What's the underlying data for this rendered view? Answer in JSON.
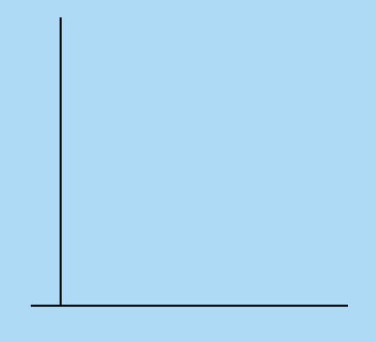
{
  "chart_data": {
    "type": "line",
    "title": "",
    "xlabel": "",
    "ylabel": "",
    "categories": [],
    "series": [],
    "grid": false,
    "legend": "none"
  },
  "colors": {
    "background": "#aedaf5",
    "axis": "#0a0a0a"
  }
}
